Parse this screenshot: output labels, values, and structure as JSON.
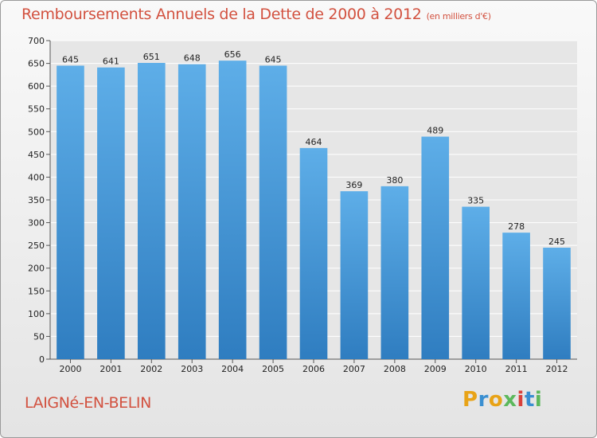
{
  "title": "Remboursements Annuels de la Dette de 2000 à 2012",
  "subtitle": "(en milliers d'€)",
  "city": "LAIGNé-EN-BELIN",
  "logo": {
    "letters": [
      "P",
      "r",
      "o",
      "x",
      "i",
      "t",
      "i"
    ],
    "colors": [
      "#e8a317",
      "#3a8fd1",
      "#e8a317",
      "#5cb85c",
      "#d9413b",
      "#3a8fd1",
      "#5cb85c"
    ]
  },
  "colors": {
    "title": "#d2513f",
    "bar_top": "#5eaee8",
    "bar_bottom": "#2f7dc0"
  },
  "chart_data": {
    "type": "bar",
    "categories": [
      "2000",
      "2001",
      "2002",
      "2003",
      "2004",
      "2005",
      "2006",
      "2007",
      "2008",
      "2009",
      "2010",
      "2011",
      "2012"
    ],
    "values": [
      645,
      641,
      651,
      648,
      656,
      645,
      464,
      369,
      380,
      489,
      335,
      278,
      245
    ],
    "ylim": [
      0,
      700
    ],
    "yticks": [
      0,
      50,
      100,
      150,
      200,
      250,
      300,
      350,
      400,
      450,
      500,
      550,
      600,
      650,
      700
    ],
    "grid": true,
    "data_labels": true
  }
}
